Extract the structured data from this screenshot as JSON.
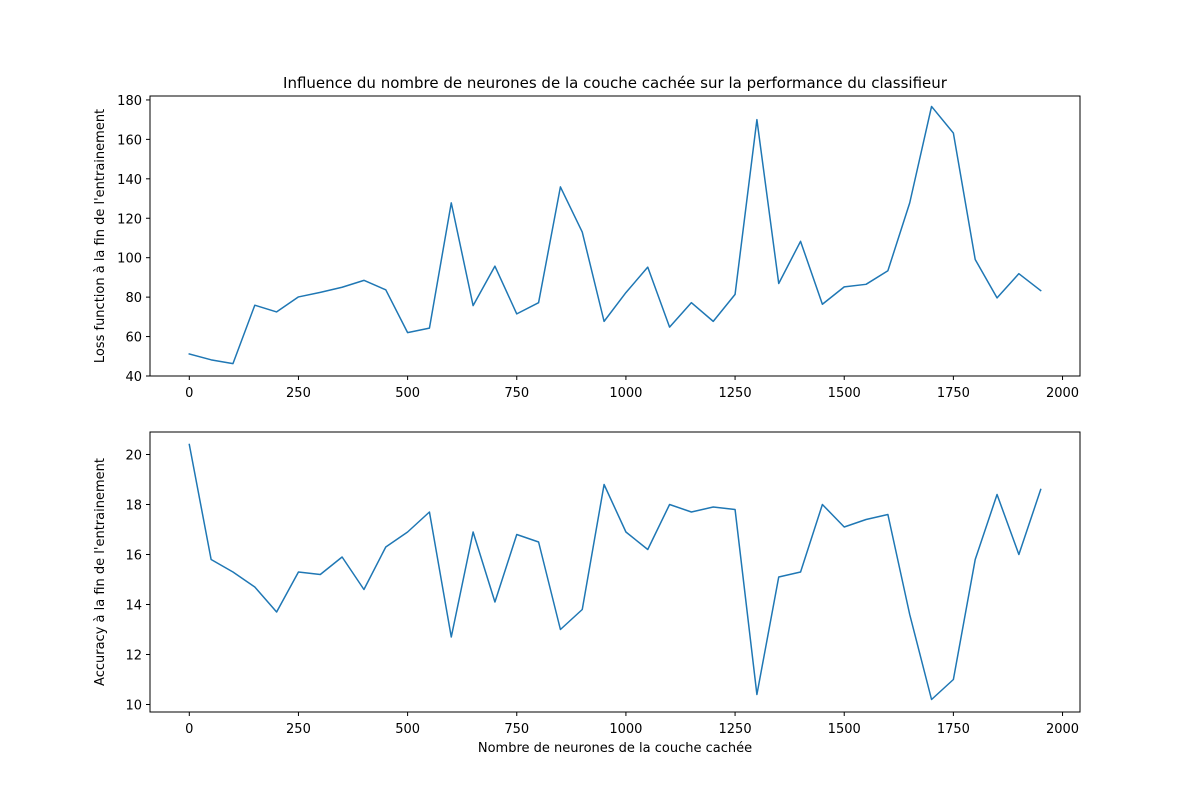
{
  "figure_title": "Influence du nombre de neurones de la couche cachée sur la performance du classifieur",
  "line_color": "#1f77b4",
  "chart_data": [
    {
      "type": "line",
      "title": "Influence du nombre de neurones de la couche cachée sur la performance du classifieur",
      "xlabel": "",
      "ylabel": "Loss function à la fin de l'entrainement",
      "xlim": [
        -90,
        2040
      ],
      "ylim": [
        40,
        182
      ],
      "xticks": [
        0,
        250,
        500,
        750,
        1000,
        1250,
        1500,
        1750,
        2000
      ],
      "yticks": [
        40,
        60,
        80,
        100,
        120,
        140,
        160,
        180
      ],
      "grid": false,
      "x": [
        0,
        50,
        100,
        150,
        200,
        250,
        300,
        350,
        400,
        450,
        500,
        550,
        600,
        650,
        700,
        750,
        800,
        850,
        900,
        950,
        1000,
        1050,
        1100,
        1150,
        1200,
        1250,
        1300,
        1350,
        1400,
        1450,
        1500,
        1550,
        1600,
        1650,
        1700,
        1750,
        1800,
        1850,
        1900,
        1950
      ],
      "series": [
        {
          "values": [
            51.2,
            48.2,
            46.3,
            75.9,
            72.5,
            80.1,
            82.4,
            85.0,
            88.5,
            83.7,
            62.0,
            64.3,
            127.8,
            75.7,
            95.7,
            71.5,
            77.2,
            135.9,
            113.0,
            67.7,
            82.3,
            95.2,
            64.8,
            77.2,
            67.7,
            81.4,
            170.0,
            86.9,
            108.3,
            76.4,
            85.2,
            86.5,
            93.4,
            127.8,
            176.7,
            163.2,
            99.1,
            79.6,
            91.9,
            83.3
          ]
        }
      ]
    },
    {
      "type": "line",
      "title": "",
      "xlabel": "Nombre de neurones de la couche cachée",
      "ylabel": "Accuracy à la fin de l'entrainement",
      "xlim": [
        -90,
        2040
      ],
      "ylim": [
        9.7,
        20.9
      ],
      "xticks": [
        0,
        250,
        500,
        750,
        1000,
        1250,
        1500,
        1750,
        2000
      ],
      "yticks": [
        10,
        12,
        14,
        16,
        18,
        20
      ],
      "grid": false,
      "x": [
        0,
        50,
        100,
        150,
        200,
        250,
        300,
        350,
        400,
        450,
        500,
        550,
        600,
        650,
        700,
        750,
        800,
        850,
        900,
        950,
        1000,
        1050,
        1100,
        1150,
        1200,
        1250,
        1300,
        1350,
        1400,
        1450,
        1500,
        1550,
        1600,
        1650,
        1700,
        1750,
        1800,
        1850,
        1900,
        1950
      ],
      "series": [
        {
          "values": [
            20.4,
            15.8,
            15.3,
            14.7,
            13.7,
            15.3,
            15.2,
            15.9,
            14.6,
            16.3,
            16.9,
            17.7,
            12.7,
            16.9,
            14.1,
            16.8,
            16.5,
            13.0,
            13.8,
            18.8,
            16.9,
            16.2,
            18.0,
            17.7,
            17.9,
            17.8,
            10.4,
            15.1,
            15.3,
            18.0,
            17.1,
            17.4,
            17.6,
            13.6,
            10.2,
            11.0,
            15.8,
            18.4,
            16.0,
            18.6
          ]
        }
      ]
    }
  ]
}
